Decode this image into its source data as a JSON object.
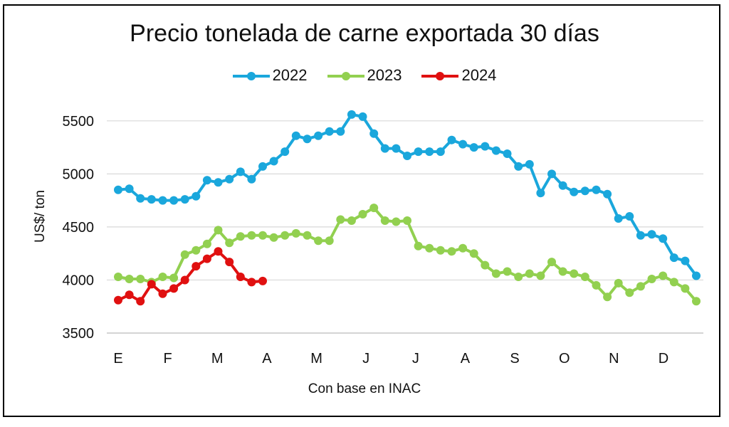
{
  "chart_data": {
    "type": "line",
    "title": "Precio tonelada de carne exportada 30 días",
    "ylabel": "US$/ ton",
    "xlabel": "Con base en INAC",
    "ylim": [
      3500,
      5700
    ],
    "yticks": [
      3500,
      4000,
      4500,
      5000,
      5500
    ],
    "x_tick_labels": [
      "E",
      "F",
      "M",
      "A",
      "M",
      "J",
      "J",
      "A",
      "S",
      "O",
      "N",
      "D"
    ],
    "grid": true,
    "legend_position": "top",
    "series": [
      {
        "name": "2022",
        "color": "#1aa7dc",
        "values": [
          4850,
          4860,
          4770,
          4760,
          4750,
          4750,
          4760,
          4790,
          4940,
          4920,
          4950,
          5020,
          4950,
          5070,
          5120,
          5210,
          5360,
          5330,
          5360,
          5400,
          5400,
          5560,
          5540,
          5380,
          5240,
          5240,
          5170,
          5210,
          5210,
          5210,
          5320,
          5280,
          5250,
          5260,
          5220,
          5190,
          5070,
          5090,
          4820,
          5000,
          4890,
          4830,
          4840,
          4850,
          4810,
          4580,
          4600,
          4420,
          4430,
          4390,
          4210,
          4180,
          4040
        ]
      },
      {
        "name": "2023",
        "color": "#92d050",
        "values": [
          4030,
          4010,
          4010,
          3980,
          4030,
          4020,
          4240,
          4280,
          4340,
          4470,
          4350,
          4410,
          4420,
          4420,
          4400,
          4420,
          4440,
          4420,
          4370,
          4370,
          4570,
          4560,
          4620,
          4680,
          4560,
          4550,
          4560,
          4320,
          4300,
          4280,
          4270,
          4300,
          4250,
          4140,
          4060,
          4080,
          4030,
          4060,
          4040,
          4170,
          4080,
          4060,
          4030,
          3950,
          3840,
          3970,
          3880,
          3940,
          4010,
          4040,
          3980,
          3920,
          3800
        ]
      },
      {
        "name": "2024",
        "color": "#e01010",
        "values": [
          3810,
          3860,
          3800,
          3960,
          3870,
          3920,
          4000,
          4130,
          4200,
          4270,
          4170,
          4030,
          3980,
          3990
        ]
      }
    ]
  }
}
